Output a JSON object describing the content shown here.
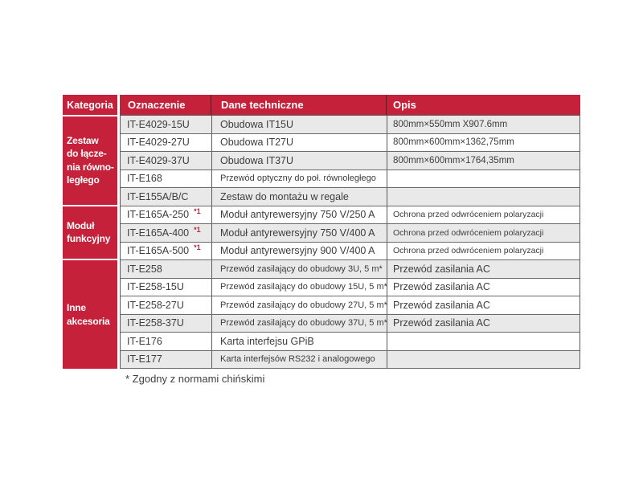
{
  "colors": {
    "accent_red": "#c5213a",
    "row_shade": "#e9e9e9"
  },
  "table": {
    "headers": {
      "kategoria": "Kategoria",
      "oznaczenie": "Oznaczenie",
      "dane": "Dane techniczne",
      "opis": "Opis"
    },
    "categories": [
      {
        "label": "Zestaw\ndo łącze-\nnia równo-\nległego"
      },
      {
        "label": "Moduł\nfunkcyjny"
      },
      {
        "label": "Inne\nakcesoria"
      }
    ],
    "rows": [
      {
        "oznaczenie": "IT-E4029-15U",
        "dane": "Obudowa IT15U",
        "opis": "800mm×550mm X907.6mm"
      },
      {
        "oznaczenie": "IT-E4029-27U",
        "dane": "Obudowa IT27U",
        "opis": "800mm×600mm×1362,75mm"
      },
      {
        "oznaczenie": "IT-E4029-37U",
        "dane": "Obudowa IT37U",
        "opis": "800mm×600mm×1764,35mm"
      },
      {
        "oznaczenie": "IT-E168",
        "dane": "Przewód optyczny do poł. równoległego",
        "opis": ""
      },
      {
        "oznaczenie": "IT-E155A/B/C",
        "dane": "Zestaw do montażu w regale",
        "opis": ""
      },
      {
        "oznaczenie": "IT-E165A-250",
        "sup": "*1",
        "dane": "Moduł antyrewersyjny 750 V/250 A",
        "opis": "Ochrona przed odwróceniem polaryzacji"
      },
      {
        "oznaczenie": "IT-E165A-400",
        "sup": "*1",
        "dane": "Moduł antyrewersyjny 750 V/400 A",
        "opis": "Ochrona przed odwróceniem polaryzacji"
      },
      {
        "oznaczenie": "IT-E165A-500",
        "sup": "*1",
        "dane": "Moduł antyrewersyjny 900 V/400 A",
        "opis": "Ochrona przed odwróceniem polaryzacji"
      },
      {
        "oznaczenie": "IT-E258",
        "dane": "Przewód zasilający do obudowy 3U, 5 m*",
        "opis": "Przewód zasilania AC"
      },
      {
        "oznaczenie": "IT-E258-15U",
        "dane": "Przewód zasilający do obudowy 15U, 5 m*",
        "opis": "Przewód zasilania AC"
      },
      {
        "oznaczenie": "IT-E258-27U",
        "dane": "Przewód zasilający do obudowy 27U, 5 m*",
        "opis": "Przewód zasilania AC"
      },
      {
        "oznaczenie": "IT-E258-37U",
        "dane": "Przewód zasilający do obudowy 37U, 5 m*",
        "opis": "Przewód zasilania AC"
      },
      {
        "oznaczenie": "IT-E176",
        "dane": "Karta interfejsu GPiB",
        "opis": ""
      },
      {
        "oznaczenie": "IT-E177",
        "dane": "Karta interfejsów RS232 i analogowego",
        "opis": ""
      }
    ],
    "footnote": "* Zgodny z normami chińskimi"
  }
}
